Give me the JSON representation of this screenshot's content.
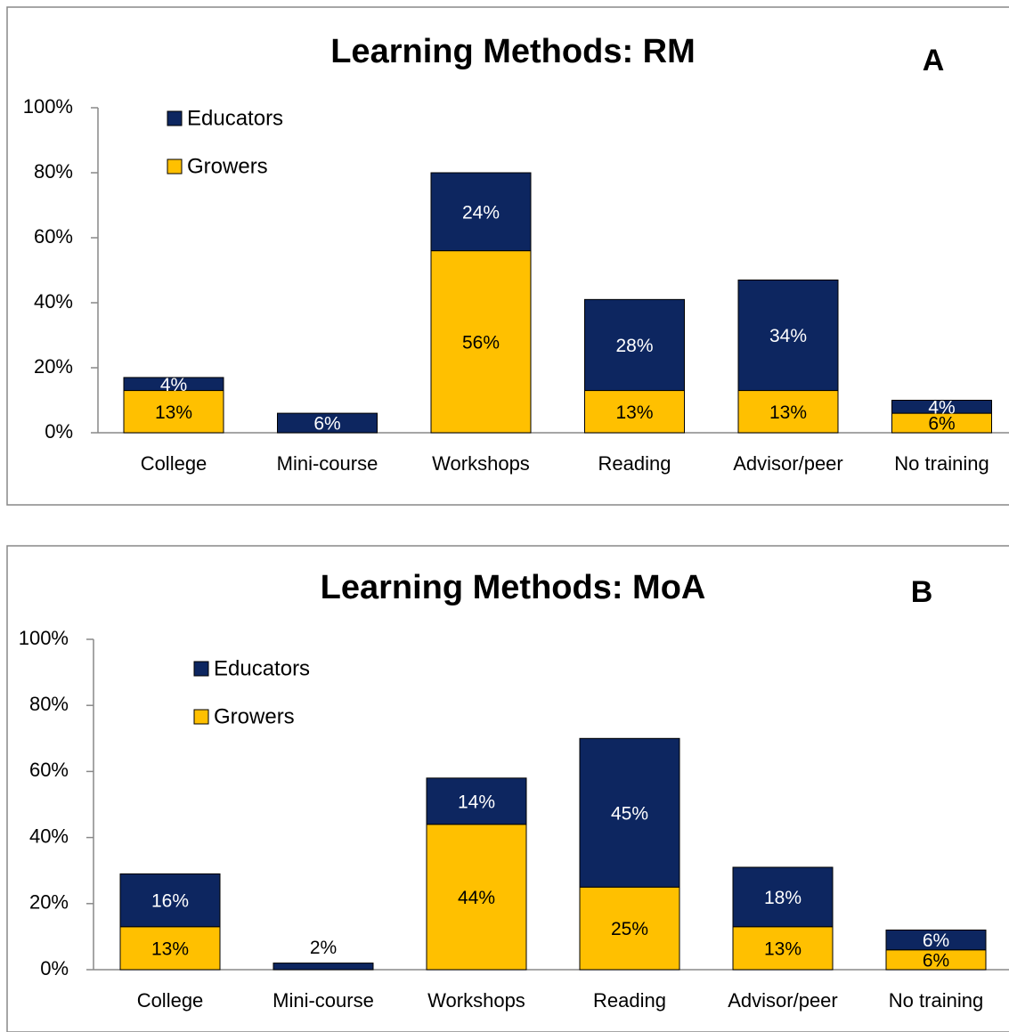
{
  "chart_data": [
    {
      "type": "bar",
      "stacked": true,
      "title": "Learning  Methods: RM",
      "panel_label": "A",
      "categories": [
        "College",
        "Mini-course",
        "Workshops",
        "Reading",
        "Advisor/peer",
        "No training"
      ],
      "series": [
        {
          "name": "Growers",
          "color": "#ffc000",
          "values": [
            13,
            0,
            56,
            13,
            13,
            6
          ],
          "value_labels": [
            "13%",
            null,
            "56%",
            "13%",
            "13%",
            "6%"
          ]
        },
        {
          "name": "Educators",
          "color": "#0d2660",
          "values": [
            4,
            6,
            24,
            28,
            34,
            4
          ],
          "value_labels": [
            "4%",
            "6%",
            "24%",
            "28%",
            "34%",
            "4%"
          ]
        }
      ],
      "ylim": [
        0,
        100
      ],
      "yticks": [
        {
          "value": 0,
          "label": "0%"
        },
        {
          "value": 20,
          "label": "20%"
        },
        {
          "value": 40,
          "label": "40%"
        },
        {
          "value": 60,
          "label": "60%"
        },
        {
          "value": 80,
          "label": "80%"
        },
        {
          "value": 100,
          "label": "100%"
        }
      ],
      "legend": "upper left"
    },
    {
      "type": "bar",
      "stacked": true,
      "title": "Learning  Methods:  MoA",
      "panel_label": "B",
      "categories": [
        "College",
        "Mini-course",
        "Workshops",
        "Reading",
        "Advisor/peer",
        "No training"
      ],
      "series": [
        {
          "name": "Growers",
          "color": "#ffc000",
          "values": [
            13,
            0,
            44,
            25,
            13,
            6
          ],
          "value_labels": [
            "13%",
            null,
            "44%",
            "25%",
            "13%",
            "6%"
          ]
        },
        {
          "name": "Educators",
          "color": "#0d2660",
          "values": [
            16,
            2,
            14,
            45,
            18,
            6
          ],
          "value_labels": [
            "16%",
            "2%",
            "14%",
            "45%",
            "18%",
            "6%"
          ]
        }
      ],
      "ylim": [
        0,
        100
      ],
      "yticks": [
        {
          "value": 0,
          "label": "0%"
        },
        {
          "value": 20,
          "label": "20%"
        },
        {
          "value": 40,
          "label": "40%"
        },
        {
          "value": 60,
          "label": "60%"
        },
        {
          "value": 80,
          "label": "80%"
        },
        {
          "value": 100,
          "label": "100%"
        }
      ],
      "legend": "upper left"
    }
  ]
}
